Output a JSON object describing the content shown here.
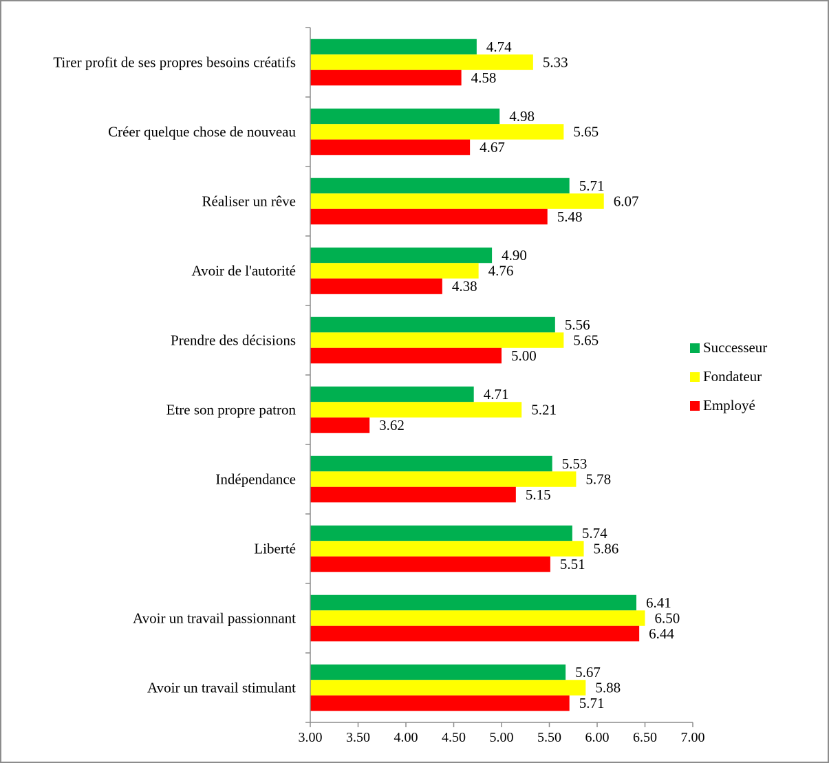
{
  "chart_data": {
    "type": "bar",
    "orientation": "horizontal",
    "categories": [
      "Tirer profit de ses propres besoins créatifs",
      "Créer quelque chose de nouveau",
      "Réaliser un rêve",
      "Avoir de l'autorité",
      "Prendre des décisions",
      "Etre son propre patron",
      "Indépendance",
      "Liberté",
      "Avoir un travail passionnant",
      "Avoir un travail stimulant"
    ],
    "series": [
      {
        "name": "Successeur",
        "color": "#00b050",
        "values": [
          4.74,
          4.98,
          5.71,
          4.9,
          5.56,
          4.71,
          5.53,
          5.74,
          6.41,
          5.67
        ],
        "labels": [
          "4.74",
          "4.98",
          "5.71",
          "4.90",
          "5.56",
          "4.71",
          "5.53",
          "5.74",
          "6.41",
          "5.67"
        ]
      },
      {
        "name": "Fondateur",
        "color": "#ffff00",
        "values": [
          5.33,
          5.65,
          6.07,
          4.76,
          5.65,
          5.21,
          5.78,
          5.86,
          6.5,
          5.88
        ],
        "labels": [
          "5.33",
          "5.65",
          "6.07",
          "4.76",
          "5.65",
          "5.21",
          "5.78",
          "5.86",
          "6.50",
          "5.88"
        ]
      },
      {
        "name": "Employé",
        "color": "#ff0000",
        "values": [
          4.58,
          4.67,
          5.48,
          4.38,
          5.0,
          3.62,
          5.15,
          5.51,
          6.44,
          5.71
        ],
        "labels": [
          "4.58",
          "4.67",
          "5.48",
          "4.38",
          "5.00",
          "3.62",
          "5.15",
          "5.51",
          "6.44",
          "5.71"
        ]
      }
    ],
    "xlim": [
      3.0,
      7.0
    ],
    "x_ticks": [
      "3.00",
      "3.50",
      "4.00",
      "4.50",
      "5.00",
      "5.50",
      "6.00",
      "6.50",
      "7.00"
    ],
    "title": "",
    "xlabel": "",
    "ylabel": "",
    "grid": false,
    "legend_position": "right"
  }
}
